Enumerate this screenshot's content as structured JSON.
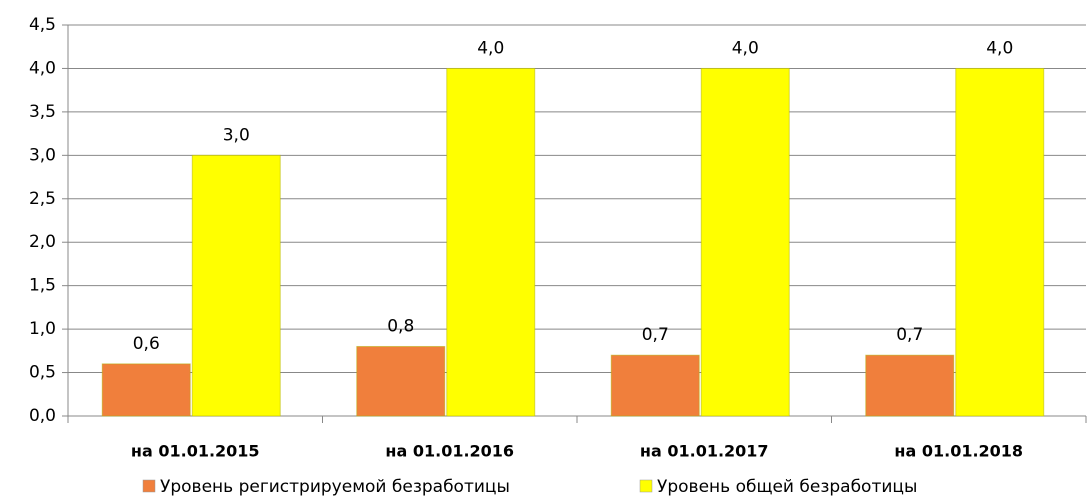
{
  "chart_data": {
    "type": "bar",
    "categories": [
      "на 01.01.2015",
      "на 01.01.2016",
      "на 01.01.2017",
      "на 01.01.2018"
    ],
    "series": [
      {
        "name": "Уровень регистрируемой безработицы",
        "color": "#f07f3c",
        "values": [
          0.6,
          0.8,
          0.7,
          0.7
        ],
        "value_labels": [
          "0,6",
          "0,8",
          "0,7",
          "0,7"
        ]
      },
      {
        "name": "Уровень общей безработицы",
        "color": "#ffff00",
        "values": [
          3.0,
          4.0,
          4.0,
          4.0
        ],
        "value_labels": [
          "3,0",
          "4,0",
          "4,0",
          "4,0"
        ]
      }
    ],
    "ylim": [
      0,
      4.5
    ],
    "yticks": [
      {
        "value": 0,
        "label": "0,0"
      },
      {
        "value": 0.5,
        "label": "0,5"
      },
      {
        "value": 1,
        "label": "1,0"
      },
      {
        "value": 1.5,
        "label": "1,5"
      },
      {
        "value": 2,
        "label": "2,0"
      },
      {
        "value": 2.5,
        "label": "2,5"
      },
      {
        "value": 3,
        "label": "3,0"
      },
      {
        "value": 3.5,
        "label": "3,5"
      },
      {
        "value": 4,
        "label": "4,0"
      },
      {
        "value": 4.5,
        "label": "4,5"
      }
    ],
    "grid": true,
    "legend": "bottom"
  }
}
